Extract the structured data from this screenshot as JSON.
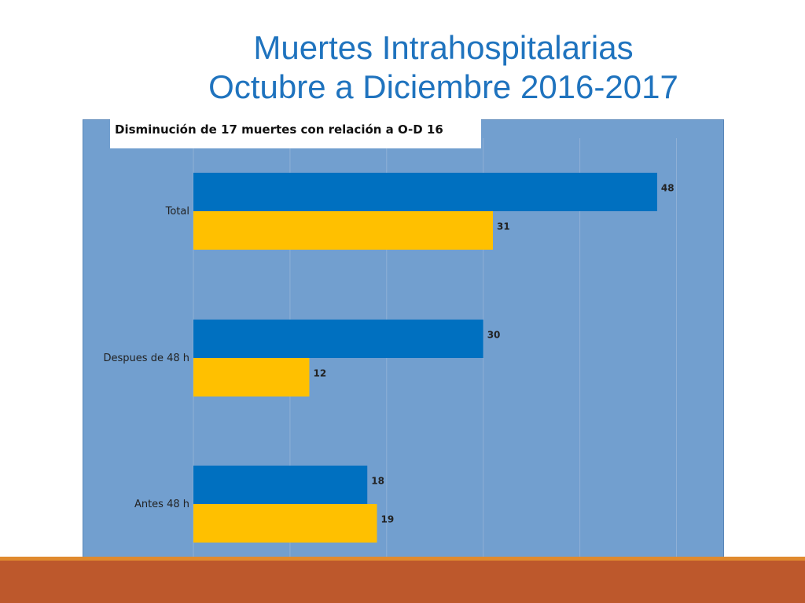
{
  "title": {
    "line1": "Muertes Intrahospitalarias",
    "line2": "Octubre a Diciembre 2016-2017"
  },
  "note": "Disminución de 17 muertes con relación a O-D 16",
  "colors": {
    "title": "#1f73be",
    "panel_bg": "#729fcf",
    "series_a": "#0070c0",
    "series_b": "#ffc000",
    "footer_line": "#e08a2e",
    "footer_band": "#bd582c"
  },
  "chart_data": {
    "type": "bar",
    "orientation": "horizontal",
    "title": "",
    "xlabel": "",
    "ylabel": "",
    "xlim": [
      0,
      50
    ],
    "grid": true,
    "legend": "none",
    "categories": [
      "Total",
      "Despues de 48 h",
      "Antes 48 h"
    ],
    "series": [
      {
        "color": "#0070c0",
        "values": [
          48,
          30,
          18
        ]
      },
      {
        "color": "#ffc000",
        "values": [
          31,
          12,
          19
        ]
      }
    ]
  }
}
